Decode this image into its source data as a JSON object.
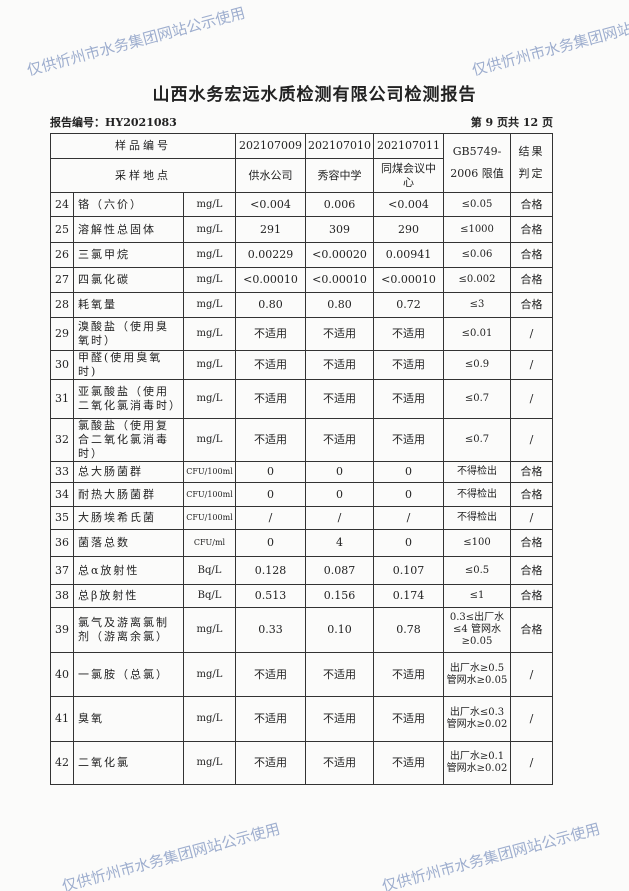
{
  "watermark": "仅供忻州市水务集团网站公示使用",
  "title": "山西水务宏远水质检测有限公司检测报告",
  "report_no": "报告编号：HY2021083",
  "page_info": "第 9 页共 12 页",
  "header": {
    "sample_no_label": "样品编号",
    "site_label": "采样地点",
    "samples": [
      "202107009",
      "202107010",
      "202107011"
    ],
    "sites": [
      "供水公司",
      "秀容中学",
      "同煤会议中心"
    ],
    "limit_label": "GB5749-2006 限值",
    "result_label": "结果判定"
  },
  "rows": [
    {
      "no": "24",
      "name": "铬（六价）",
      "unit": "mg/L",
      "v": [
        "<0.004",
        "0.006",
        "<0.004"
      ],
      "limit": "≤0.05",
      "result": "合格"
    },
    {
      "no": "25",
      "name": "溶解性总固体",
      "unit": "mg/L",
      "v": [
        "291",
        "309",
        "290"
      ],
      "limit": "≤1000",
      "result": "合格"
    },
    {
      "no": "26",
      "name": "三氯甲烷",
      "unit": "mg/L",
      "v": [
        "0.00229",
        "<0.00020",
        "0.00941"
      ],
      "limit": "≤0.06",
      "result": "合格"
    },
    {
      "no": "27",
      "name": "四氯化碳",
      "unit": "mg/L",
      "v": [
        "<0.00010",
        "<0.00010",
        "<0.00010"
      ],
      "limit": "≤0.002",
      "result": "合格"
    },
    {
      "no": "28",
      "name": "耗氧量",
      "unit": "mg/L",
      "v": [
        "0.80",
        "0.80",
        "0.72"
      ],
      "limit": "≤3",
      "result": "合格"
    },
    {
      "no": "29",
      "name": "溴酸盐（使用臭氧时）",
      "unit": "mg/L",
      "v": [
        "不适用",
        "不适用",
        "不适用"
      ],
      "limit": "≤0.01",
      "result": "/"
    },
    {
      "no": "30",
      "name": "甲醛(使用臭氧时)",
      "unit": "mg/L",
      "v": [
        "不适用",
        "不适用",
        "不适用"
      ],
      "limit": "≤0.9",
      "result": "/"
    },
    {
      "no": "31",
      "name": "亚氯酸盐（使用二氧化氯消毒时）",
      "unit": "mg/L",
      "v": [
        "不适用",
        "不适用",
        "不适用"
      ],
      "limit": "≤0.7",
      "result": "/"
    },
    {
      "no": "32",
      "name": "氯酸盐（使用复合二氧化氯消毒时）",
      "unit": "mg/L",
      "v": [
        "不适用",
        "不适用",
        "不适用"
      ],
      "limit": "≤0.7",
      "result": "/"
    },
    {
      "no": "33",
      "name": "总大肠菌群",
      "unit": "CFU/100ml",
      "v": [
        "0",
        "0",
        "0"
      ],
      "limit": "不得检出",
      "result": "合格"
    },
    {
      "no": "34",
      "name": "耐热大肠菌群",
      "unit": "CFU/100ml",
      "v": [
        "0",
        "0",
        "0"
      ],
      "limit": "不得检出",
      "result": "合格"
    },
    {
      "no": "35",
      "name": "大肠埃希氏菌",
      "unit": "CFU/100ml",
      "v": [
        "/",
        "/",
        "/"
      ],
      "limit": "不得检出",
      "result": "/"
    },
    {
      "no": "36",
      "name": "菌落总数",
      "unit": "CFU/ml",
      "v": [
        "0",
        "4",
        "0"
      ],
      "limit": "≤100",
      "result": "合格"
    },
    {
      "no": "37",
      "name": "总α放射性",
      "unit": "Bq/L",
      "v": [
        "0.128",
        "0.087",
        "0.107"
      ],
      "limit": "≤0.5",
      "result": "合格"
    },
    {
      "no": "38",
      "name": "总β放射性",
      "unit": "Bq/L",
      "v": [
        "0.513",
        "0.156",
        "0.174"
      ],
      "limit": "≤1",
      "result": "合格"
    },
    {
      "no": "39",
      "name": "氯气及游离氯制剂（游离余氯）",
      "unit": "mg/L",
      "v": [
        "0.33",
        "0.10",
        "0.78"
      ],
      "limit": "0.3≤出厂水≤4 管网水≥0.05",
      "result": "合格"
    },
    {
      "no": "40",
      "name": "一氯胺（总氯）",
      "unit": "mg/L",
      "v": [
        "不适用",
        "不适用",
        "不适用"
      ],
      "limit": "出厂水≥0.5 管网水≥0.05",
      "result": "/"
    },
    {
      "no": "41",
      "name": "臭氧",
      "unit": "mg/L",
      "v": [
        "不适用",
        "不适用",
        "不适用"
      ],
      "limit": "出厂水≤0.3 管网水≥0.02",
      "result": "/"
    },
    {
      "no": "42",
      "name": "二氧化氯",
      "unit": "mg/L",
      "v": [
        "不适用",
        "不适用",
        "不适用"
      ],
      "limit": "出厂水≥0.1 管网水≥0.02",
      "result": "/"
    }
  ]
}
